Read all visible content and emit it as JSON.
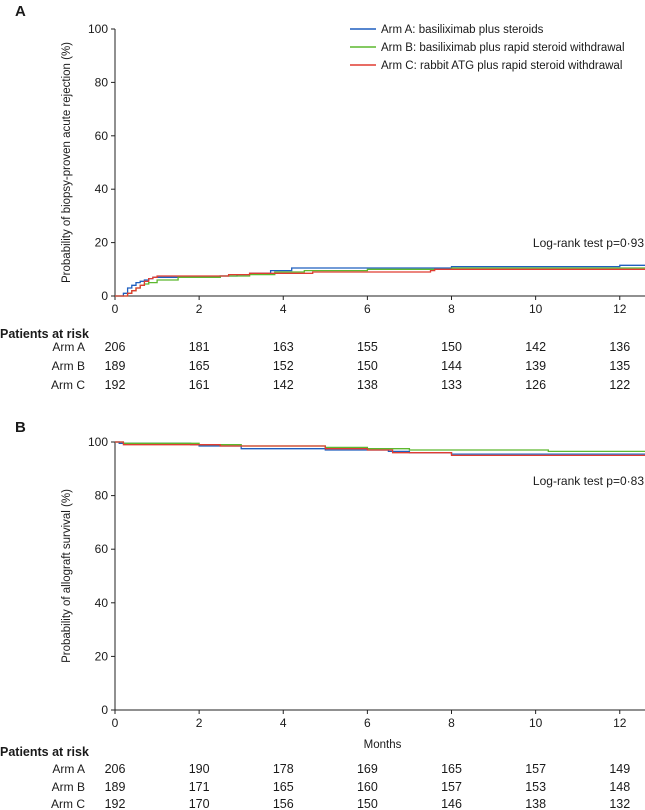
{
  "chart_data": [
    {
      "type": "line",
      "panel": "A",
      "ylabel": "Probability of biopsy-proven acute rejection (%)",
      "xlabel": "",
      "xlim": [
        0,
        12.6
      ],
      "ylim": [
        0,
        100
      ],
      "xticks": [
        0,
        2,
        4,
        6,
        8,
        10,
        12
      ],
      "yticks": [
        0,
        20,
        40,
        60,
        80,
        100
      ],
      "legend_position": "top-right",
      "annotation": "Log-rank test p=0·93",
      "series": [
        {
          "name": "Arm A: basiliximab plus steroids",
          "color": "#1f5fbf",
          "x": [
            0,
            0.2,
            0.3,
            0.4,
            0.5,
            0.6,
            0.7,
            0.8,
            0.9,
            1.0,
            2.5,
            2.9,
            3.2,
            3.7,
            4.2,
            5.5,
            8.0,
            12.0,
            12.6
          ],
          "y": [
            0,
            1,
            3,
            4,
            5,
            5.5,
            6,
            6.5,
            7,
            7,
            7.5,
            8,
            8.5,
            9.5,
            10.5,
            10.5,
            11,
            11.5,
            11.5
          ]
        },
        {
          "name": "Arm B: basiliximab plus rapid steroid withdrawal",
          "color": "#5cb82e",
          "x": [
            0,
            0.3,
            0.4,
            0.5,
            0.6,
            0.7,
            0.8,
            1.0,
            1.5,
            2.5,
            3.2,
            3.8,
            4.5,
            6.0,
            8.0,
            12.6
          ],
          "y": [
            0,
            1,
            2,
            3,
            4,
            4.5,
            5,
            6,
            7,
            7.5,
            8,
            9,
            9.5,
            10,
            10.5,
            10.5
          ]
        },
        {
          "name": "Arm C: rabbit ATG plus rapid steroid withdrawal",
          "color": "#e03c31",
          "x": [
            0,
            0.3,
            0.4,
            0.5,
            0.6,
            0.7,
            0.8,
            0.9,
            1.0,
            1.7,
            2.7,
            3.2,
            4.7,
            7.5,
            7.6,
            12.6
          ],
          "y": [
            0,
            1,
            2,
            3,
            4,
            5.5,
            6.5,
            7,
            7.5,
            7.5,
            8,
            8.5,
            9,
            9.5,
            10,
            10
          ]
        }
      ],
      "risk_table": {
        "header": "Patients at risk",
        "rows": [
          {
            "arm": "Arm A",
            "values": [
              206,
              181,
              163,
              155,
              150,
              142,
              136
            ]
          },
          {
            "arm": "Arm B",
            "values": [
              189,
              165,
              152,
              150,
              144,
              139,
              135
            ]
          },
          {
            "arm": "Arm C",
            "values": [
              192,
              161,
              142,
              138,
              133,
              126,
              122
            ]
          }
        ]
      }
    },
    {
      "type": "line",
      "panel": "B",
      "ylabel": "Probability of allograft survival (%)",
      "xlabel": "Months",
      "xlim": [
        0,
        12.6
      ],
      "ylim": [
        0,
        100
      ],
      "xticks": [
        0,
        2,
        4,
        6,
        8,
        10,
        12
      ],
      "yticks": [
        0,
        20,
        40,
        60,
        80,
        100
      ],
      "annotation": "Log-rank test p=0·83",
      "series": [
        {
          "name": "Arm A",
          "color": "#1f5fbf",
          "x": [
            0,
            0.1,
            1.8,
            2.0,
            3.0,
            5.0,
            6.5,
            7.0,
            8.0,
            12.6
          ],
          "y": [
            100,
            99.5,
            99,
            98.5,
            97.5,
            97,
            96.5,
            96,
            95.5,
            95.5
          ]
        },
        {
          "name": "Arm B",
          "color": "#5cb82e",
          "x": [
            0,
            0.2,
            2.0,
            3.0,
            5.0,
            6.0,
            7.0,
            10.3,
            12.6
          ],
          "y": [
            100,
            99.5,
            99,
            98.5,
            98,
            97.5,
            97,
            96.5,
            96.5
          ]
        },
        {
          "name": "Arm C",
          "color": "#e03c31",
          "x": [
            0,
            0.2,
            1.9,
            2.5,
            3.0,
            5.0,
            6.0,
            6.6,
            8.0,
            12.6
          ],
          "y": [
            100,
            99,
            99,
            98.5,
            98.5,
            97.5,
            97,
            96,
            95,
            95
          ]
        }
      ],
      "risk_table": {
        "header": "Patients at risk",
        "rows": [
          {
            "arm": "Arm A",
            "values": [
              206,
              190,
              178,
              169,
              165,
              157,
              149
            ]
          },
          {
            "arm": "Arm B",
            "values": [
              189,
              171,
              165,
              160,
              157,
              153,
              148
            ]
          },
          {
            "arm": "Arm C",
            "values": [
              192,
              170,
              156,
              150,
              146,
              138,
              132
            ]
          }
        ]
      }
    }
  ]
}
